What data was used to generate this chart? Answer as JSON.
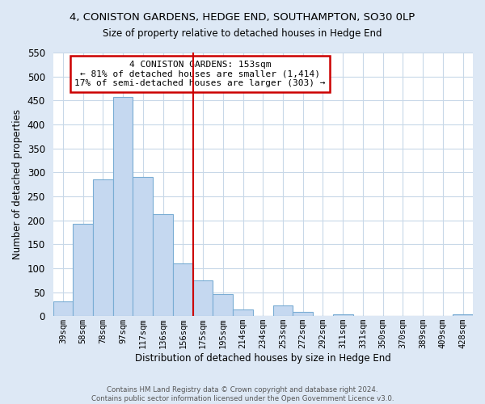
{
  "title": "4, CONISTON GARDENS, HEDGE END, SOUTHAMPTON, SO30 0LP",
  "subtitle": "Size of property relative to detached houses in Hedge End",
  "xlabel": "Distribution of detached houses by size in Hedge End",
  "ylabel": "Number of detached properties",
  "bar_labels": [
    "39sqm",
    "58sqm",
    "78sqm",
    "97sqm",
    "117sqm",
    "136sqm",
    "156sqm",
    "175sqm",
    "195sqm",
    "214sqm",
    "234sqm",
    "253sqm",
    "272sqm",
    "292sqm",
    "311sqm",
    "331sqm",
    "350sqm",
    "370sqm",
    "389sqm",
    "409sqm",
    "428sqm"
  ],
  "bar_values": [
    30,
    192,
    285,
    458,
    290,
    213,
    110,
    74,
    46,
    13,
    0,
    22,
    8,
    0,
    4,
    0,
    0,
    0,
    0,
    0,
    3
  ],
  "bar_color": "#c5d8f0",
  "bar_edge_color": "#7aadd4",
  "vline_color": "#cc0000",
  "annotation_title": "4 CONISTON GARDENS: 153sqm",
  "annotation_line1": "← 81% of detached houses are smaller (1,414)",
  "annotation_line2": "17% of semi-detached houses are larger (303) →",
  "annotation_box_facecolor": "#ffffff",
  "annotation_box_edgecolor": "#cc0000",
  "ylim": [
    0,
    550
  ],
  "yticks": [
    0,
    50,
    100,
    150,
    200,
    250,
    300,
    350,
    400,
    450,
    500,
    550
  ],
  "footer1": "Contains HM Land Registry data © Crown copyright and database right 2024.",
  "footer2": "Contains public sector information licensed under the Open Government Licence v3.0.",
  "fig_bg_color": "#dde8f5",
  "plot_bg_color": "#ffffff",
  "grid_color": "#c8d8e8"
}
